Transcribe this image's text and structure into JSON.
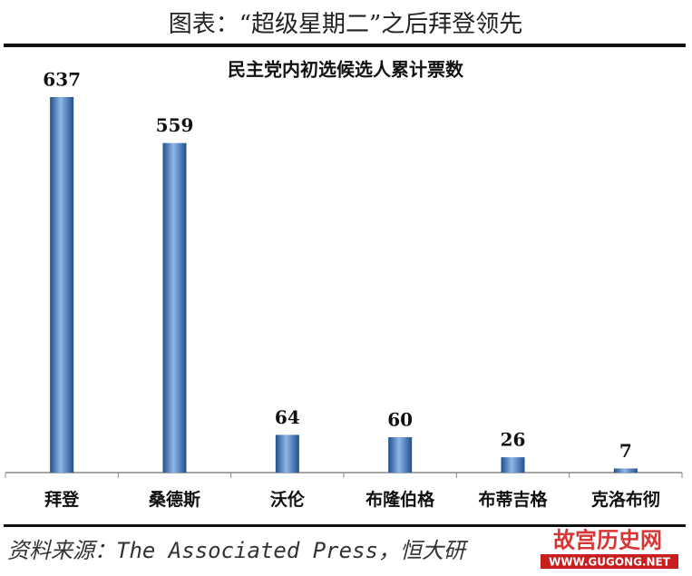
{
  "header": "图表：“超级星期二”之后拜登领先",
  "chart_data": {
    "type": "bar",
    "title": "民主党内初选候选人累计票数",
    "categories": [
      "拜登",
      "桑德斯",
      "沃伦",
      "布隆伯格",
      "布蒂吉格",
      "克洛布彻"
    ],
    "values": [
      637,
      559,
      64,
      60,
      26,
      7
    ],
    "color": "#2e6fb8"
  },
  "source": "资料来源：The Associated Press，恒大研",
  "watermark": {
    "name": "故宫历史网",
    "url": "WWW.GUGONG.NET"
  }
}
